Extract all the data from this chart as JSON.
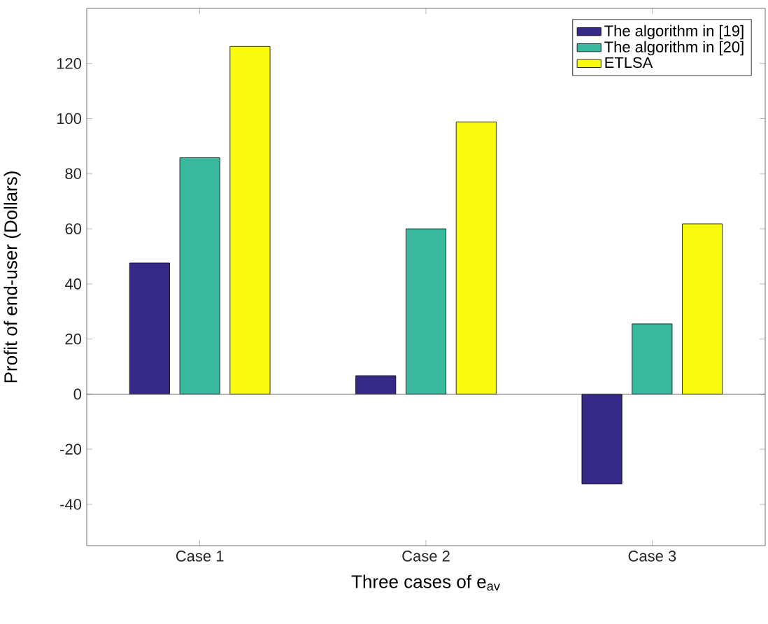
{
  "chart_data": {
    "type": "bar",
    "xlabel": "Three cases of e$_{av}$",
    "ylabel": "Profit of end-user (Dollars)",
    "categories": [
      "Case 1",
      "Case 2",
      "Case 3"
    ],
    "series": [
      {
        "name": "The algorithm in [19]",
        "color": "#352a87",
        "values": [
          47.6,
          6.7,
          -32.6
        ]
      },
      {
        "name": "The algorithm in [20]",
        "color": "#38b99e",
        "values": [
          85.8,
          60.0,
          25.5
        ]
      },
      {
        "name": "ETLSA",
        "color": "#f9fb0e",
        "values": [
          126.2,
          98.8,
          61.8
        ]
      }
    ],
    "ylim": [
      -55,
      140
    ],
    "yticks": [
      -40,
      -20,
      0,
      20,
      40,
      60,
      80,
      100,
      120
    ],
    "legend": "top right"
  }
}
